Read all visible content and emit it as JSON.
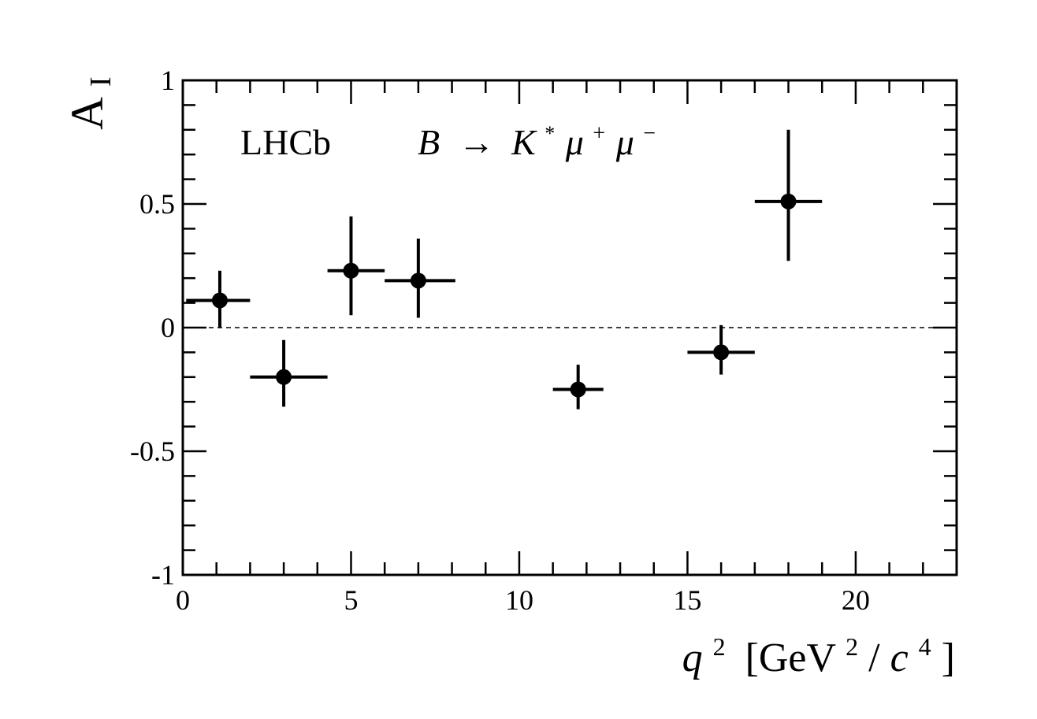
{
  "chart_data": {
    "type": "scatter",
    "experiment": "LHCb",
    "decay": {
      "parent": "B",
      "arrow": "→",
      "kaon": "K",
      "kaon_sup": "*",
      "mu": "μ",
      "mu_plus_sup": "+",
      "mu_minus_sup": "−"
    },
    "xlabel": {
      "var": "q",
      "var_sup": "2",
      "unit_open": "[GeV",
      "unit_sup1": "2",
      "unit_mid": "/",
      "unit_c": "c",
      "unit_sup2": "4",
      "unit_close": "]"
    },
    "ylabel": {
      "main": "A",
      "sub": "I"
    },
    "xlim": [
      0,
      23
    ],
    "ylim": [
      -1,
      1
    ],
    "x_ticks": [
      0,
      5,
      10,
      15,
      20
    ],
    "x_tick_labels": [
      "0",
      "5",
      "10",
      "15",
      "20"
    ],
    "y_ticks": [
      -1,
      -0.5,
      0,
      0.5,
      1
    ],
    "y_tick_labels": [
      "-1",
      "-0.5",
      "0",
      "0.5",
      "1"
    ],
    "reference_line": {
      "y": 0,
      "style": "dashed"
    },
    "marker": "filled-circle",
    "grid": false,
    "points": [
      {
        "x": 1.1,
        "x_low": 0.1,
        "x_high": 2.0,
        "y": 0.11,
        "y_err_up": 0.12,
        "y_err_down": 0.11
      },
      {
        "x": 3.0,
        "x_low": 2.0,
        "x_high": 4.3,
        "y": -0.2,
        "y_err_up": 0.15,
        "y_err_down": 0.12
      },
      {
        "x": 5.0,
        "x_low": 4.3,
        "x_high": 6.0,
        "y": 0.23,
        "y_err_up": 0.22,
        "y_err_down": 0.18
      },
      {
        "x": 7.0,
        "x_low": 6.0,
        "x_high": 8.1,
        "y": 0.19,
        "y_err_up": 0.17,
        "y_err_down": 0.15
      },
      {
        "x": 11.75,
        "x_low": 11.0,
        "x_high": 12.5,
        "y": -0.25,
        "y_err_up": 0.1,
        "y_err_down": 0.08
      },
      {
        "x": 16.0,
        "x_low": 15.0,
        "x_high": 17.0,
        "y": -0.1,
        "y_err_up": 0.11,
        "y_err_down": 0.09
      },
      {
        "x": 18.0,
        "x_low": 17.0,
        "x_high": 19.0,
        "y": 0.51,
        "y_err_up": 0.29,
        "y_err_down": 0.24
      }
    ]
  }
}
